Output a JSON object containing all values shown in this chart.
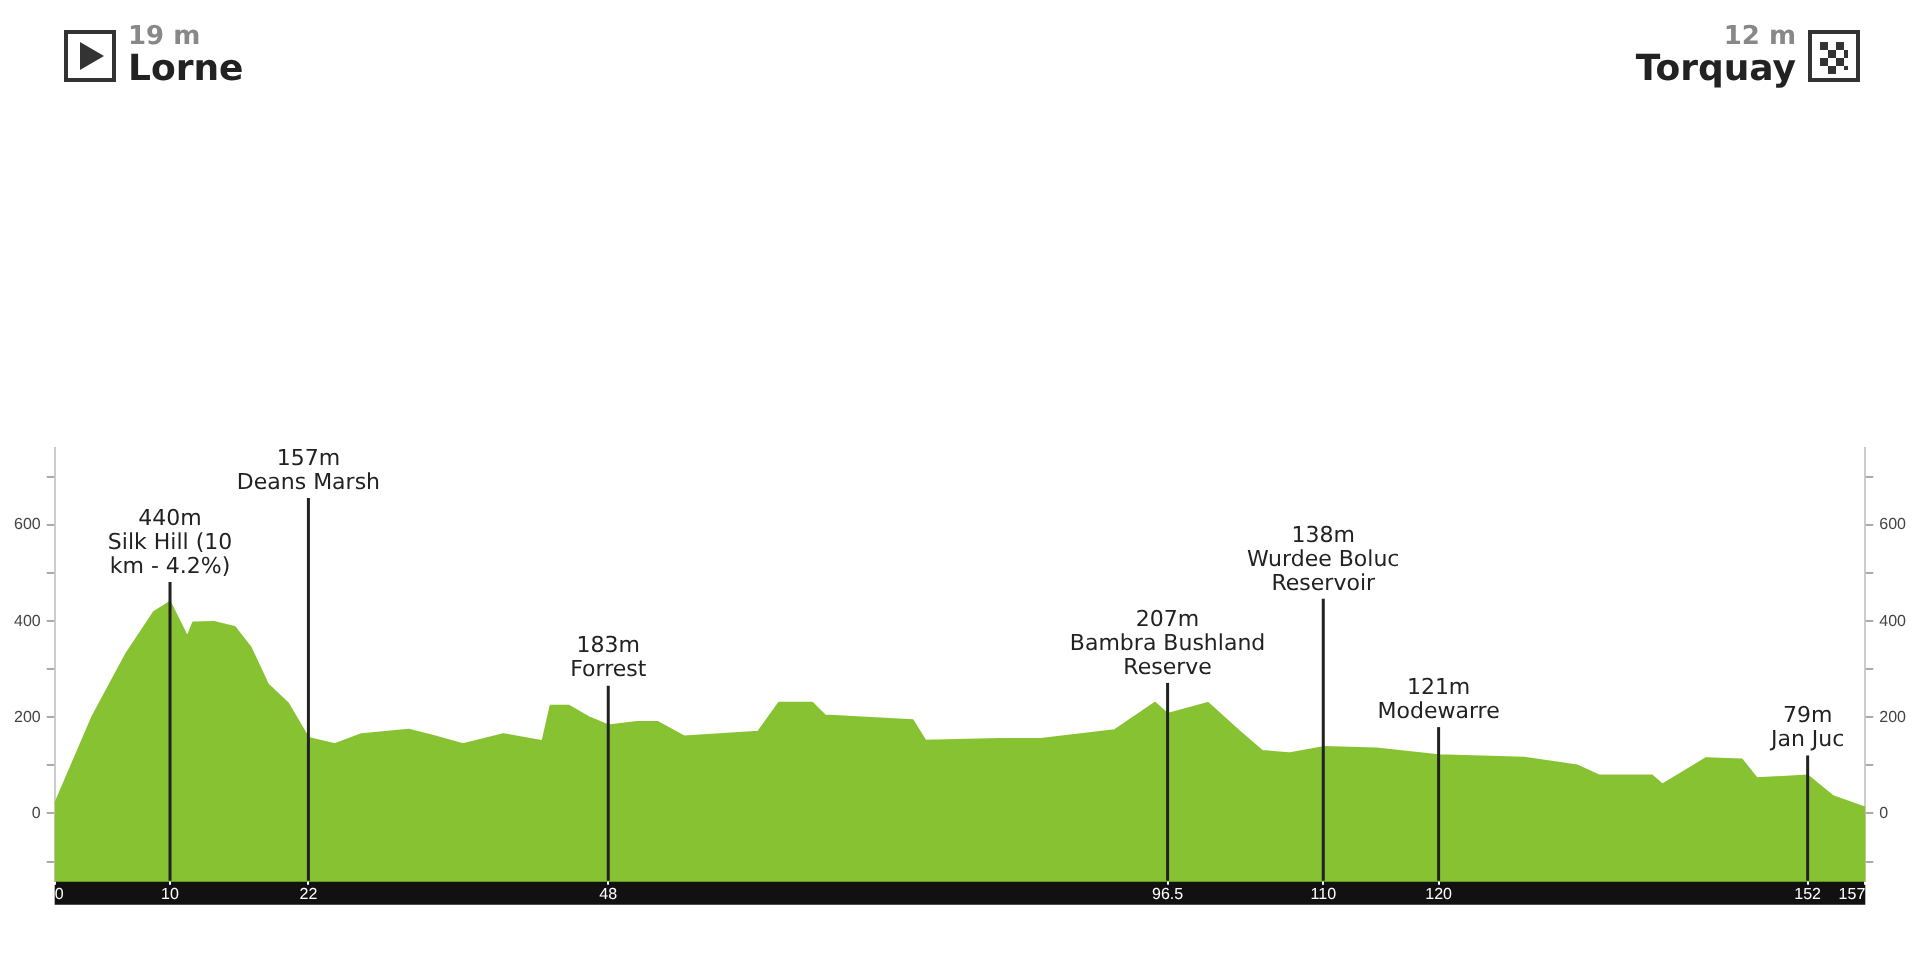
{
  "chart_data": {
    "type": "area",
    "color": "#86c232",
    "x": [
      0,
      3.3,
      6.2,
      8.6,
      10,
      11.5,
      12,
      13.8,
      15.6,
      17,
      18.5,
      20.2,
      22,
      24.3,
      26.6,
      30.7,
      33,
      35.4,
      38.9,
      42.3,
      43,
      44.6,
      46.4,
      48,
      50.5,
      52.3,
      54.6,
      61,
      62.8,
      65.7,
      66.8,
      74.4,
      75.5,
      82,
      85.5,
      91.9,
      95.4,
      96.5,
      100,
      103,
      104.7,
      107,
      110,
      114.6,
      120,
      127.4,
      132,
      133.9,
      138.5,
      139.4,
      143.2,
      146.3,
      147.6,
      152,
      154.2,
      157
    ],
    "values": [
      19,
      203,
      332,
      419,
      440,
      367,
      397,
      398,
      388,
      345,
      268,
      230,
      157,
      144,
      165,
      174,
      160,
      144,
      165,
      150,
      224,
      224,
      199,
      183,
      190,
      190,
      160,
      170,
      230,
      230,
      204,
      194,
      151,
      155,
      155,
      173,
      230,
      207,
      230,
      165,
      130,
      125,
      138,
      135,
      121,
      116,
      100,
      79,
      79,
      60,
      115,
      112,
      73,
      79,
      36,
      12
    ],
    "xlim": [
      0,
      157
    ],
    "xticks": [
      0,
      10,
      22,
      48,
      96.5,
      110,
      120,
      152,
      157
    ],
    "ylim": [
      -140,
      760
    ],
    "yticks": [
      {
        "value": -100,
        "label": null
      },
      0,
      {
        "value": 100,
        "label": null
      },
      200,
      {
        "value": 300,
        "label": null
      },
      400,
      {
        "value": 500,
        "label": null
      },
      600,
      {
        "value": 700,
        "label": null
      }
    ],
    "y2lim": [
      -140,
      760
    ],
    "y2ticks": [
      {
        "value": -100,
        "label": null
      },
      0,
      {
        "value": 100,
        "label": null
      },
      200,
      {
        "value": 300,
        "label": null
      },
      400,
      {
        "value": 500,
        "label": null
      },
      600,
      {
        "value": 700,
        "label": null
      }
    ],
    "bands": [
      {
        "axis": "y",
        "from": -140,
        "to": 0,
        "color": "#86c232"
      }
    ],
    "grid": false,
    "legend": false,
    "marker": "none",
    "annotations": [
      "19 m\nLorne",
      "12 m\nTorquay"
    ],
    "ref_lines": [
      {
        "axis": "x",
        "value": 10,
        "label": "440m\nSilk Hill (10\nkm - 4.2%)",
        "color": "#222222"
      },
      {
        "axis": "x",
        "value": 22,
        "label": "157m\nDeans Marsh",
        "color": "#222222"
      },
      {
        "axis": "x",
        "value": 48,
        "label": "183m\nForrest",
        "color": "#222222"
      },
      {
        "axis": "x",
        "value": 96.5,
        "label": "207m\nBambra Bushland\nReserve",
        "color": "#222222"
      },
      {
        "axis": "x",
        "value": 110,
        "label": "138m\nWurdee Boluc\nReservoir",
        "color": "#222222"
      },
      {
        "axis": "x",
        "value": 120,
        "label": "121m\nModewarre",
        "color": "#222222"
      },
      {
        "axis": "x",
        "value": 152,
        "label": "79m\nJan Juc",
        "color": "#222222"
      }
    ]
  }
}
